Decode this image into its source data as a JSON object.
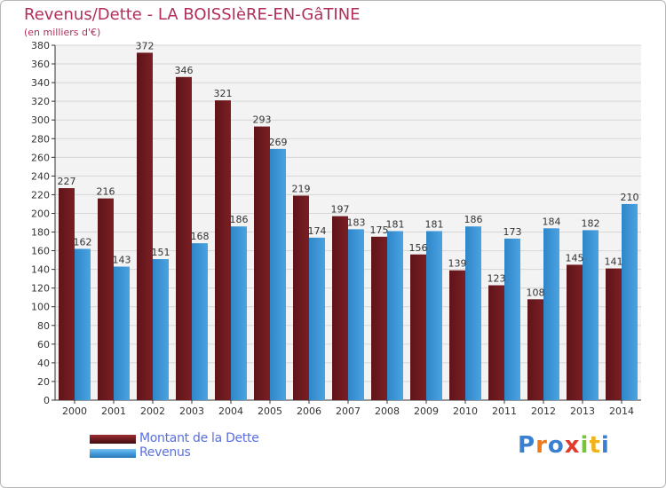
{
  "title": "Revenus/Dette - LA BOISSIèRE-EN-GâTINE",
  "subtitle": "(en milliers d'€)",
  "logo_text": "Proxiti",
  "colors": {
    "dette": "#7a1f24",
    "revenus": "#4aa3e2",
    "title": "#b0305a",
    "legend_text": "#5a6fe0"
  },
  "legend": {
    "dette_label": "Montant de la Dette",
    "revenus_label": "Revenus"
  },
  "chart_data": {
    "type": "bar",
    "title": "Revenus/Dette - LA BOISSIèRE-EN-GâTINE",
    "ylabel": "(en milliers d'€)",
    "xlabel": "",
    "ylim": [
      0,
      380
    ],
    "ytick_step": 20,
    "grid": true,
    "legend_position": "bottom-left",
    "categories": [
      "2000",
      "2001",
      "2002",
      "2003",
      "2004",
      "2005",
      "2006",
      "2007",
      "2008",
      "2009",
      "2010",
      "2011",
      "2012",
      "2013",
      "2014"
    ],
    "series": [
      {
        "name": "Montant de la Dette",
        "values": [
          227,
          216,
          372,
          346,
          321,
          293,
          219,
          197,
          175,
          156,
          139,
          123,
          108,
          145,
          141
        ]
      },
      {
        "name": "Revenus",
        "values": [
          162,
          143,
          151,
          168,
          186,
          269,
          174,
          183,
          181,
          181,
          186,
          173,
          184,
          182,
          210
        ]
      }
    ]
  }
}
